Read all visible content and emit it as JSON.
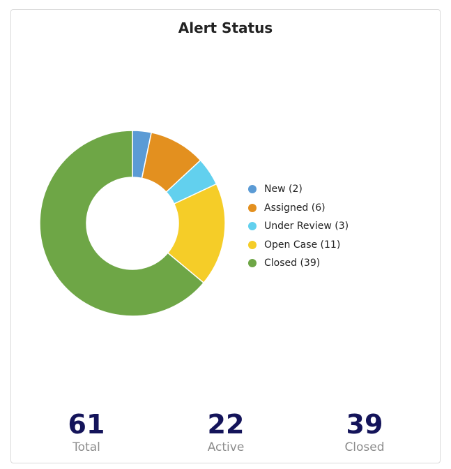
{
  "card": {
    "title": "Alert Status"
  },
  "chart_data": {
    "type": "pie",
    "variant": "donut",
    "title": "Alert Status",
    "categories": [
      "New",
      "Assigned",
      "Under Review",
      "Open Case",
      "Closed"
    ],
    "values": [
      2,
      6,
      3,
      11,
      39
    ],
    "colors": [
      "#5b9bd5",
      "#e3901f",
      "#62d0ee",
      "#f5cd28",
      "#6ea646"
    ],
    "legend": {
      "position": "right",
      "labels": [
        "New (2)",
        "Assigned (6)",
        "Under Review (3)",
        "Open Case (11)",
        "Closed (39)"
      ]
    }
  },
  "stats": [
    {
      "value": "61",
      "label": "Total"
    },
    {
      "value": "22",
      "label": "Active"
    },
    {
      "value": "39",
      "label": "Closed"
    }
  ]
}
